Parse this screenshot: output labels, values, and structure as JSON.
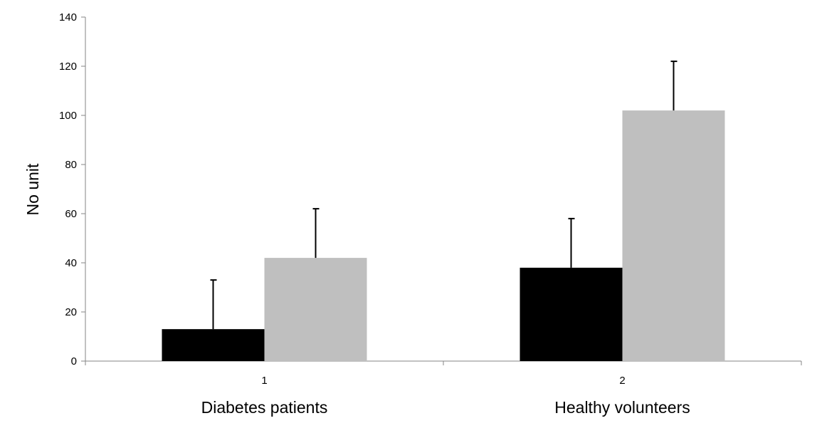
{
  "chart_data": {
    "type": "bar",
    "categories": [
      "1",
      "2"
    ],
    "group_labels": [
      "Diabetes patients",
      "Healthy volunteers"
    ],
    "series": [
      {
        "values": [
          13,
          38
        ],
        "error_plus": [
          20,
          20
        ],
        "color": "#000000"
      },
      {
        "values": [
          42,
          102
        ],
        "error_plus": [
          20,
          20
        ],
        "color": "#bfbfbf"
      }
    ],
    "ylabel": "No unit",
    "ylim": [
      0,
      140
    ],
    "yticks": [
      0,
      20,
      40,
      60,
      80,
      100,
      120,
      140
    ],
    "grid": false,
    "legend": "none"
  }
}
